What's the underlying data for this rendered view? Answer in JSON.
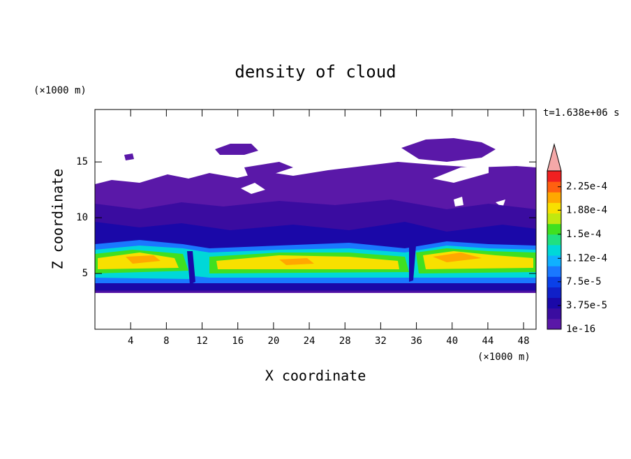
{
  "chart_data": {
    "type": "contour",
    "title": "density of cloud",
    "x_label": "X coordinate",
    "y_label": "Z coordinate",
    "x_unit": "(×1000 m)",
    "y_unit": "(×1000 m)",
    "time_label": "t=1.638e+06 s",
    "xlim": [
      0,
      49.4
    ],
    "xticks": [
      4,
      8,
      12,
      16,
      20,
      24,
      28,
      32,
      36,
      40,
      44,
      48
    ],
    "ylim": [
      0,
      19.7
    ],
    "yticks": [
      5,
      10,
      15
    ],
    "clim": [
      0,
      0.00025
    ],
    "cticks": [
      {
        "value": 1e-16,
        "label": "1e-16"
      },
      {
        "value": 3.75e-05,
        "label": "3.75e-5"
      },
      {
        "value": 7.5e-05,
        "label": "7.5e-5"
      },
      {
        "value": 0.000112,
        "label": "1.12e-4"
      },
      {
        "value": 0.00015,
        "label": "1.5e-4"
      },
      {
        "value": 0.000188,
        "label": "1.88e-4"
      },
      {
        "value": 0.000225,
        "label": "2.25e-4"
      }
    ],
    "colors": [
      "#5a18a8",
      "#3a0ca0",
      "#1a08a8",
      "#1020c8",
      "#0a40e8",
      "#1a78ff",
      "#10b0ff",
      "#00d8d8",
      "#20e080",
      "#40e020",
      "#c0e810",
      "#f8e000",
      "#ffa800",
      "#ff6010",
      "#f02020"
    ],
    "extend_color": "#f4a8a8"
  }
}
